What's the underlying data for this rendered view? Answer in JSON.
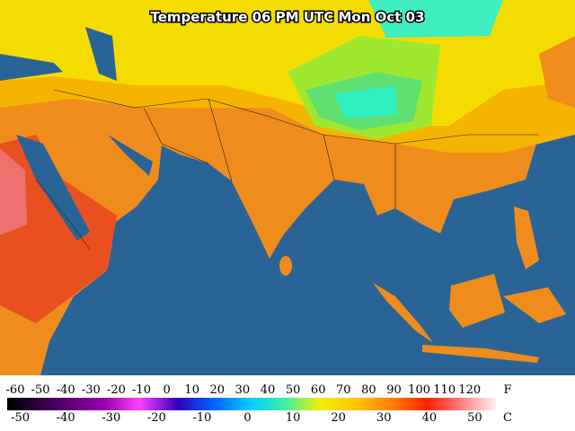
{
  "title": "Temperature 06 PM UTC Mon Oct 03",
  "legend": {
    "fahrenheit": {
      "unit": "F",
      "labels": [
        -60,
        -50,
        -40,
        -30,
        -20,
        -10,
        0,
        10,
        20,
        30,
        40,
        50,
        60,
        70,
        80,
        90,
        100,
        110,
        120
      ]
    },
    "celsius": {
      "unit": "C",
      "labels": [
        -50,
        -40,
        -30,
        -20,
        -10,
        0,
        10,
        20,
        30,
        40,
        50
      ]
    }
  }
}
